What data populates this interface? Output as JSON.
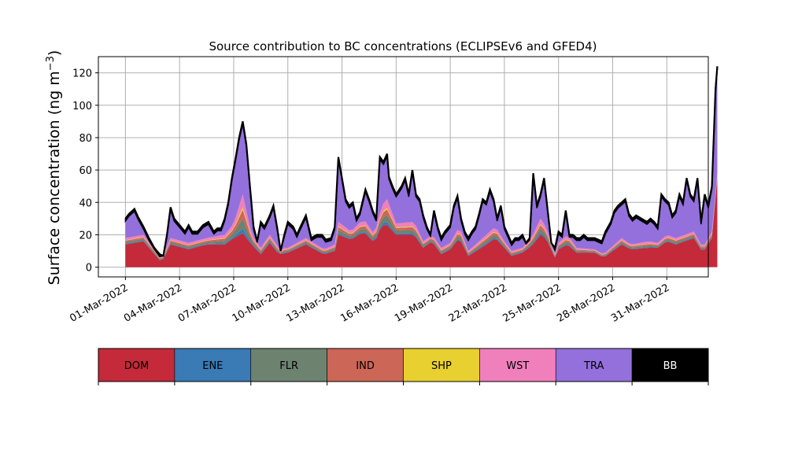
{
  "chart_data": {
    "type": "area",
    "title": "Source contribution to BC concentrations (ECLIPSEv6 and GFED4)",
    "ylabel": "Surface concentration (ng m",
    "ylabel_sup": "−3",
    "ylabel_close": ")",
    "ylim": [
      -6,
      130
    ],
    "yticks": [
      0,
      20,
      40,
      60,
      80,
      100,
      120
    ],
    "x_start_day": 1,
    "xlim_days": [
      -0.5,
      33.3
    ],
    "xticks": [
      {
        "day": 1,
        "label": "01-Mar-2022"
      },
      {
        "day": 4,
        "label": "04-Mar-2022"
      },
      {
        "day": 7,
        "label": "07-Mar-2022"
      },
      {
        "day": 10,
        "label": "10-Mar-2022"
      },
      {
        "day": 13,
        "label": "13-Mar-2022"
      },
      {
        "day": 16,
        "label": "16-Mar-2022"
      },
      {
        "day": 19,
        "label": "19-Mar-2022"
      },
      {
        "day": 22,
        "label": "22-Mar-2022"
      },
      {
        "day": 25,
        "label": "25-Mar-2022"
      },
      {
        "day": 28,
        "label": "28-Mar-2022"
      },
      {
        "day": 31,
        "label": "31-Mar-2022"
      }
    ],
    "grid": true,
    "stack_order": [
      "DOM",
      "ENE",
      "FLR",
      "IND",
      "SHP",
      "WST",
      "TRA",
      "BB"
    ],
    "series": [
      {
        "name": "DOM",
        "color": "#c42a3a"
      },
      {
        "name": "ENE",
        "color": "#3a7ab5"
      },
      {
        "name": "FLR",
        "color": "#6e8270"
      },
      {
        "name": "IND",
        "color": "#cc6657"
      },
      {
        "name": "SHP",
        "color": "#e8d030"
      },
      {
        "name": "WST",
        "color": "#f080bc"
      },
      {
        "name": "TRA",
        "color": "#9370db"
      },
      {
        "name": "BB",
        "color": "#000000"
      }
    ],
    "total_points": [
      [
        1.0,
        30
      ],
      [
        1.2,
        33
      ],
      [
        1.5,
        36
      ],
      [
        1.7,
        31
      ],
      [
        2.0,
        25
      ],
      [
        2.3,
        18
      ],
      [
        2.6,
        12
      ],
      [
        2.9,
        8
      ],
      [
        3.1,
        7
      ],
      [
        3.3,
        20
      ],
      [
        3.5,
        37
      ],
      [
        3.7,
        30
      ],
      [
        4.0,
        26
      ],
      [
        4.3,
        22
      ],
      [
        4.5,
        26
      ],
      [
        4.7,
        22
      ],
      [
        5.0,
        22
      ],
      [
        5.3,
        26
      ],
      [
        5.6,
        28
      ],
      [
        5.9,
        22
      ],
      [
        6.1,
        24
      ],
      [
        6.3,
        24
      ],
      [
        6.5,
        30
      ],
      [
        6.7,
        40
      ],
      [
        6.9,
        55
      ],
      [
        7.1,
        67
      ],
      [
        7.3,
        80
      ],
      [
        7.5,
        90
      ],
      [
        7.7,
        76
      ],
      [
        7.9,
        50
      ],
      [
        8.1,
        25
      ],
      [
        8.3,
        16
      ],
      [
        8.5,
        28
      ],
      [
        8.7,
        25
      ],
      [
        9.0,
        32
      ],
      [
        9.2,
        38
      ],
      [
        9.4,
        25
      ],
      [
        9.6,
        10
      ],
      [
        9.8,
        20
      ],
      [
        10.0,
        28
      ],
      [
        10.3,
        25
      ],
      [
        10.5,
        20
      ],
      [
        10.7,
        25
      ],
      [
        11.0,
        32
      ],
      [
        11.3,
        18
      ],
      [
        11.6,
        20
      ],
      [
        11.9,
        20
      ],
      [
        12.1,
        17
      ],
      [
        12.4,
        18
      ],
      [
        12.6,
        25
      ],
      [
        12.8,
        68
      ],
      [
        13.0,
        55
      ],
      [
        13.2,
        42
      ],
      [
        13.4,
        38
      ],
      [
        13.6,
        40
      ],
      [
        13.8,
        30
      ],
      [
        14.0,
        34
      ],
      [
        14.3,
        48
      ],
      [
        14.5,
        42
      ],
      [
        14.7,
        35
      ],
      [
        14.9,
        30
      ],
      [
        15.1,
        68
      ],
      [
        15.3,
        65
      ],
      [
        15.5,
        70
      ],
      [
        15.6,
        56
      ],
      [
        15.8,
        50
      ],
      [
        16.0,
        45
      ],
      [
        16.3,
        50
      ],
      [
        16.5,
        55
      ],
      [
        16.7,
        45
      ],
      [
        16.9,
        60
      ],
      [
        17.1,
        45
      ],
      [
        17.3,
        42
      ],
      [
        17.5,
        32
      ],
      [
        17.7,
        25
      ],
      [
        17.9,
        20
      ],
      [
        18.1,
        35
      ],
      [
        18.3,
        25
      ],
      [
        18.5,
        18
      ],
      [
        18.7,
        22
      ],
      [
        19.0,
        26
      ],
      [
        19.2,
        38
      ],
      [
        19.4,
        44
      ],
      [
        19.6,
        30
      ],
      [
        19.8,
        22
      ],
      [
        20.0,
        18
      ],
      [
        20.2,
        22
      ],
      [
        20.4,
        25
      ],
      [
        20.6,
        33
      ],
      [
        20.8,
        42
      ],
      [
        21.0,
        40
      ],
      [
        21.2,
        48
      ],
      [
        21.4,
        42
      ],
      [
        21.6,
        30
      ],
      [
        21.8,
        38
      ],
      [
        22.0,
        25
      ],
      [
        22.2,
        20
      ],
      [
        22.4,
        15
      ],
      [
        22.6,
        18
      ],
      [
        22.8,
        18
      ],
      [
        23.0,
        20
      ],
      [
        23.2,
        15
      ],
      [
        23.4,
        18
      ],
      [
        23.6,
        58
      ],
      [
        23.8,
        38
      ],
      [
        24.0,
        45
      ],
      [
        24.2,
        55
      ],
      [
        24.4,
        35
      ],
      [
        24.6,
        15
      ],
      [
        24.8,
        12
      ],
      [
        25.0,
        22
      ],
      [
        25.2,
        20
      ],
      [
        25.4,
        35
      ],
      [
        25.6,
        20
      ],
      [
        25.8,
        20
      ],
      [
        26.0,
        18
      ],
      [
        26.2,
        18
      ],
      [
        26.4,
        20
      ],
      [
        26.6,
        18
      ],
      [
        26.8,
        18
      ],
      [
        27.0,
        18
      ],
      [
        27.2,
        17
      ],
      [
        27.4,
        16
      ],
      [
        27.6,
        22
      ],
      [
        27.9,
        28
      ],
      [
        28.1,
        35
      ],
      [
        28.3,
        38
      ],
      [
        28.5,
        40
      ],
      [
        28.7,
        42
      ],
      [
        28.9,
        33
      ],
      [
        29.1,
        30
      ],
      [
        29.3,
        32
      ],
      [
        29.6,
        30
      ],
      [
        29.9,
        28
      ],
      [
        30.1,
        30
      ],
      [
        30.3,
        28
      ],
      [
        30.5,
        25
      ],
      [
        30.7,
        45
      ],
      [
        30.9,
        42
      ],
      [
        31.1,
        40
      ],
      [
        31.3,
        32
      ],
      [
        31.5,
        35
      ],
      [
        31.7,
        45
      ],
      [
        31.9,
        40
      ],
      [
        32.1,
        55
      ],
      [
        32.3,
        45
      ],
      [
        32.5,
        42
      ],
      [
        32.7,
        55
      ],
      [
        32.9,
        28
      ],
      [
        33.1,
        45
      ],
      [
        33.3,
        38
      ],
      [
        33.5,
        50
      ],
      [
        33.7,
        110
      ],
      [
        33.8,
        124
      ]
    ],
    "tra_base_points": [
      [
        1.0,
        18
      ],
      [
        2.0,
        20
      ],
      [
        3.0,
        5
      ],
      [
        3.5,
        18
      ],
      [
        4.5,
        15
      ],
      [
        5.5,
        18
      ],
      [
        6.5,
        20
      ],
      [
        7.0,
        27
      ],
      [
        7.5,
        45
      ],
      [
        8.0,
        20
      ],
      [
        8.5,
        12
      ],
      [
        9.0,
        20
      ],
      [
        9.5,
        12
      ],
      [
        10.0,
        12
      ],
      [
        11.0,
        18
      ],
      [
        12.0,
        11
      ],
      [
        12.6,
        14
      ],
      [
        12.8,
        28
      ],
      [
        13.5,
        22
      ],
      [
        14.2,
        30
      ],
      [
        14.8,
        20
      ],
      [
        15.2,
        38
      ],
      [
        15.5,
        42
      ],
      [
        16.0,
        27
      ],
      [
        17.0,
        28
      ],
      [
        17.5,
        16
      ],
      [
        18.0,
        20
      ],
      [
        18.5,
        12
      ],
      [
        19.0,
        15
      ],
      [
        19.5,
        25
      ],
      [
        20.0,
        10
      ],
      [
        21.0,
        20
      ],
      [
        21.5,
        25
      ],
      [
        22.0,
        16
      ],
      [
        22.4,
        10
      ],
      [
        23.0,
        12
      ],
      [
        23.5,
        18
      ],
      [
        24.0,
        30
      ],
      [
        24.3,
        25
      ],
      [
        24.8,
        8
      ],
      [
        25.0,
        15
      ],
      [
        25.5,
        20
      ],
      [
        26.0,
        12
      ],
      [
        27.0,
        11
      ],
      [
        27.5,
        8
      ],
      [
        28.5,
        18
      ],
      [
        29.0,
        14
      ],
      [
        30.0,
        16
      ],
      [
        30.5,
        15
      ],
      [
        31.0,
        20
      ],
      [
        31.5,
        18
      ],
      [
        32.0,
        20
      ],
      [
        32.5,
        22
      ],
      [
        33.0,
        12
      ],
      [
        33.5,
        22
      ],
      [
        33.8,
        58
      ]
    ],
    "dom_top_points": [
      [
        1.0,
        14
      ],
      [
        2.0,
        16
      ],
      [
        3.0,
        3
      ],
      [
        3.5,
        14
      ],
      [
        4.5,
        11
      ],
      [
        5.5,
        14
      ],
      [
        6.5,
        14
      ],
      [
        7.0,
        18
      ],
      [
        7.5,
        21
      ],
      [
        8.0,
        14
      ],
      [
        8.5,
        8
      ],
      [
        9.0,
        15
      ],
      [
        9.5,
        8
      ],
      [
        10.0,
        9
      ],
      [
        11.0,
        14
      ],
      [
        12.0,
        8
      ],
      [
        12.6,
        10
      ],
      [
        12.8,
        20
      ],
      [
        13.5,
        17
      ],
      [
        14.2,
        22
      ],
      [
        14.8,
        15
      ],
      [
        15.2,
        26
      ],
      [
        15.5,
        26
      ],
      [
        16.0,
        20
      ],
      [
        17.0,
        20
      ],
      [
        17.5,
        12
      ],
      [
        18.0,
        16
      ],
      [
        18.5,
        8
      ],
      [
        19.0,
        11
      ],
      [
        19.5,
        18
      ],
      [
        20.0,
        7
      ],
      [
        21.0,
        14
      ],
      [
        21.5,
        18
      ],
      [
        22.0,
        12
      ],
      [
        22.4,
        7
      ],
      [
        23.0,
        9
      ],
      [
        23.5,
        13
      ],
      [
        24.0,
        20
      ],
      [
        24.3,
        18
      ],
      [
        24.8,
        6
      ],
      [
        25.0,
        11
      ],
      [
        25.5,
        14
      ],
      [
        26.0,
        9
      ],
      [
        27.0,
        9
      ],
      [
        27.5,
        6
      ],
      [
        28.5,
        14
      ],
      [
        29.0,
        11
      ],
      [
        30.0,
        12
      ],
      [
        30.5,
        12
      ],
      [
        31.0,
        16
      ],
      [
        31.5,
        14
      ],
      [
        32.0,
        16
      ],
      [
        32.5,
        18
      ],
      [
        33.0,
        9
      ],
      [
        33.5,
        18
      ],
      [
        33.8,
        55
      ]
    ]
  },
  "legend": {
    "items": [
      {
        "label": "DOM",
        "color": "#c42a3a",
        "text_color": "#000000"
      },
      {
        "label": "ENE",
        "color": "#3a7ab5",
        "text_color": "#000000"
      },
      {
        "label": "FLR",
        "color": "#6e8270",
        "text_color": "#000000"
      },
      {
        "label": "IND",
        "color": "#cc6657",
        "text_color": "#000000"
      },
      {
        "label": "SHP",
        "color": "#e8d030",
        "text_color": "#000000"
      },
      {
        "label": "WST",
        "color": "#f080bc",
        "text_color": "#000000"
      },
      {
        "label": "TRA",
        "color": "#9370db",
        "text_color": "#000000"
      },
      {
        "label": "BB",
        "color": "#000000",
        "text_color": "#ffffff"
      }
    ]
  }
}
